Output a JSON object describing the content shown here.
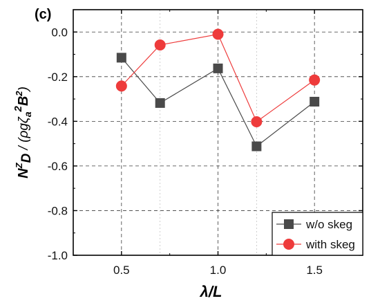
{
  "chart_data": {
    "type": "line",
    "panel_tag": "(c)",
    "x": [
      0.5,
      0.7,
      1.0,
      1.2,
      1.5
    ],
    "series": [
      {
        "name": "w/o skeg",
        "values": [
          -0.115,
          -0.318,
          -0.163,
          -0.512,
          -0.312
        ],
        "color": "#4a4a4a",
        "marker": "square"
      },
      {
        "name": "with skeg",
        "values": [
          -0.242,
          -0.058,
          -0.01,
          -0.402,
          -0.215
        ],
        "color": "#ee3b3b",
        "marker": "circle"
      }
    ],
    "xlabel": "λ/L",
    "ylabel": "N^Z_D / (ρgζ_a^2 B^2)",
    "ylabel_parts": {
      "n": "N",
      "n_sup": "Z",
      "n_sub": "D",
      "sep": " / (ρgζ",
      "zeta_sub": "a",
      "zeta_sup": "2",
      "b": "B",
      "b_sup": "2",
      "close": ")"
    },
    "xlabel_parts": {
      "lambda": "λ",
      "rest": "/L"
    },
    "xlim": [
      0.25,
      1.75
    ],
    "ylim": [
      -1.0,
      0.1
    ],
    "xticks": [
      0.5,
      1.0,
      1.5
    ],
    "xtick_labels": [
      "0.5",
      "1.0",
      "1.5"
    ],
    "yticks": [
      0.0,
      -0.2,
      -0.4,
      -0.6,
      -0.8,
      -1.0
    ],
    "ytick_labels": [
      "0.0",
      "-0.2",
      "-0.4",
      "-0.6",
      "-0.8",
      "-1.0"
    ],
    "grid": true,
    "legend_position": "bottom-right"
  }
}
